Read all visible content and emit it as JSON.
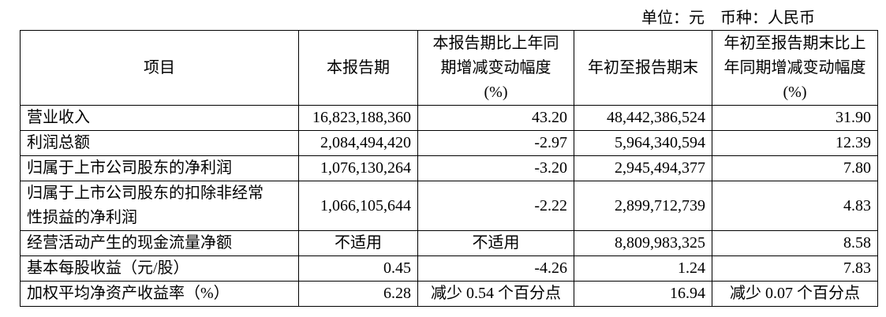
{
  "unit_note": "单位：元　币种：人民币",
  "table": {
    "header": [
      [
        "项目"
      ],
      [
        "本报告期"
      ],
      [
        "本报告期比上年同",
        "期增减变动幅度",
        "(%)"
      ],
      [
        "年初至报告期末"
      ],
      [
        "年初至报告期末比上",
        "年同期增减变动幅度",
        "(%)"
      ]
    ],
    "rows": [
      [
        [
          "营业收入"
        ],
        "16,823,188,360",
        "43.20",
        "48,442,386,524",
        "31.90"
      ],
      [
        [
          "利润总额"
        ],
        "2,084,494,420",
        "-2.97",
        "5,964,340,594",
        "12.39"
      ],
      [
        [
          "归属于上市公司股东的净利润"
        ],
        "1,076,130,264",
        "-3.20",
        "2,945,494,377",
        "7.80"
      ],
      [
        [
          "归属于上市公司股东的扣除非经常",
          "性损益的净利润"
        ],
        "1,066,105,644",
        "-2.22",
        "2,899,712,739",
        "4.83"
      ],
      [
        [
          "经营活动产生的现金流量净额"
        ],
        "不适用",
        "不适用",
        "8,809,983,325",
        "8.58"
      ],
      [
        [
          "基本每股收益（元/股）"
        ],
        "0.45",
        "-4.26",
        "1.24",
        "7.83"
      ],
      [
        [
          "加权平均净资产收益率（%）"
        ],
        "6.28",
        "减少 0.54 个百分点",
        "16.94",
        "减少 0.07 个百分点"
      ]
    ]
  }
}
